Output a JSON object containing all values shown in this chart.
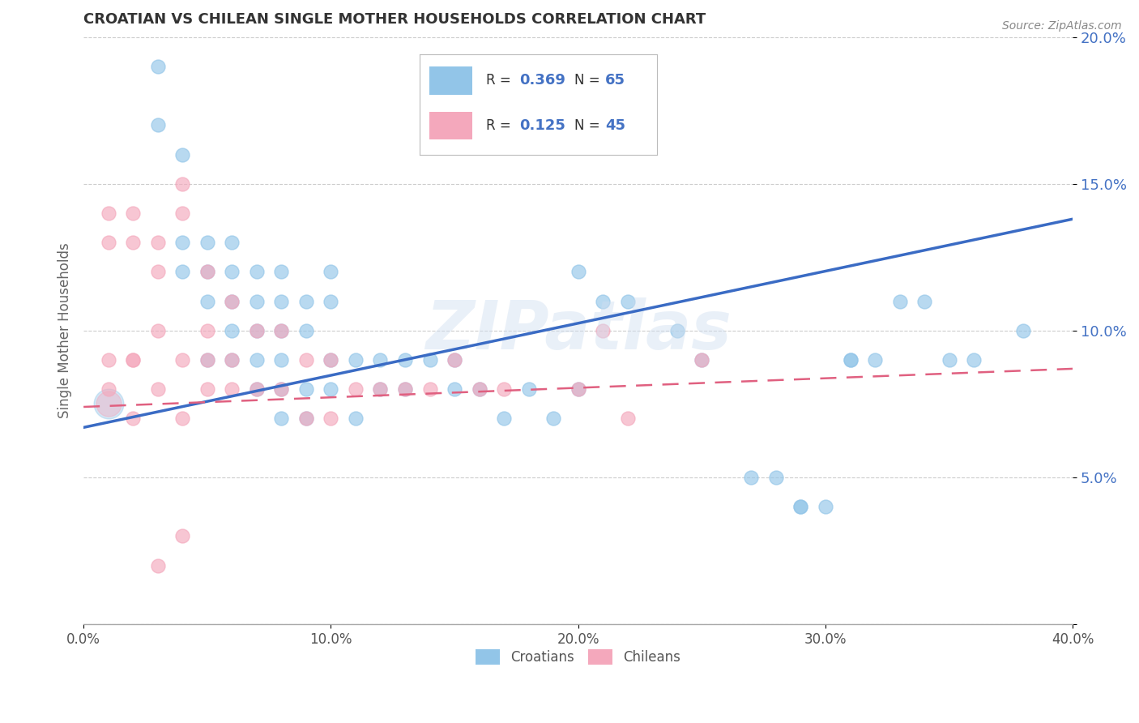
{
  "title": "CROATIAN VS CHILEAN SINGLE MOTHER HOUSEHOLDS CORRELATION CHART",
  "source": "Source: ZipAtlas.com",
  "ylabel": "Single Mother Households",
  "xlim": [
    0.0,
    0.4
  ],
  "ylim": [
    0.0,
    0.2
  ],
  "xticks": [
    0.0,
    0.1,
    0.2,
    0.3,
    0.4
  ],
  "xtick_labels": [
    "0.0%",
    "10.0%",
    "20.0%",
    "30.0%",
    "40.0%"
  ],
  "yticks": [
    0.0,
    0.05,
    0.1,
    0.15,
    0.2
  ],
  "ytick_labels": [
    "",
    "5.0%",
    "10.0%",
    "15.0%",
    "20.0%"
  ],
  "croatian_color": "#92C5E8",
  "chilean_color": "#F4A8BC",
  "trendline_croatian_color": "#3A6BC4",
  "trendline_chilean_color": "#E06080",
  "watermark": "ZIPatlas",
  "legend_R_croatian": "0.369",
  "legend_N_croatian": "65",
  "legend_R_chilean": "0.125",
  "legend_N_chilean": "45",
  "background_color": "#FFFFFF",
  "grid_color": "#CCCCCC",
  "croatian_x": [
    0.03,
    0.03,
    0.04,
    0.04,
    0.04,
    0.05,
    0.05,
    0.05,
    0.05,
    0.06,
    0.06,
    0.06,
    0.06,
    0.06,
    0.07,
    0.07,
    0.07,
    0.07,
    0.07,
    0.08,
    0.08,
    0.08,
    0.08,
    0.08,
    0.08,
    0.09,
    0.09,
    0.09,
    0.09,
    0.1,
    0.1,
    0.1,
    0.1,
    0.11,
    0.11,
    0.12,
    0.12,
    0.13,
    0.13,
    0.14,
    0.15,
    0.15,
    0.16,
    0.17,
    0.18,
    0.19,
    0.2,
    0.2,
    0.21,
    0.22,
    0.24,
    0.25,
    0.27,
    0.28,
    0.29,
    0.3,
    0.31,
    0.32,
    0.33,
    0.34,
    0.35,
    0.36,
    0.38,
    0.31,
    0.29
  ],
  "croatian_y": [
    0.19,
    0.17,
    0.16,
    0.13,
    0.12,
    0.13,
    0.12,
    0.11,
    0.09,
    0.13,
    0.12,
    0.11,
    0.1,
    0.09,
    0.12,
    0.11,
    0.1,
    0.09,
    0.08,
    0.12,
    0.11,
    0.1,
    0.09,
    0.08,
    0.07,
    0.11,
    0.1,
    0.08,
    0.07,
    0.12,
    0.11,
    0.09,
    0.08,
    0.09,
    0.07,
    0.09,
    0.08,
    0.09,
    0.08,
    0.09,
    0.09,
    0.08,
    0.08,
    0.07,
    0.08,
    0.07,
    0.12,
    0.08,
    0.11,
    0.11,
    0.1,
    0.09,
    0.05,
    0.05,
    0.04,
    0.04,
    0.09,
    0.09,
    0.11,
    0.11,
    0.09,
    0.09,
    0.1,
    0.09,
    0.04
  ],
  "chilean_x": [
    0.01,
    0.01,
    0.01,
    0.02,
    0.02,
    0.02,
    0.02,
    0.03,
    0.03,
    0.03,
    0.03,
    0.04,
    0.04,
    0.04,
    0.04,
    0.05,
    0.05,
    0.05,
    0.06,
    0.06,
    0.07,
    0.07,
    0.08,
    0.08,
    0.09,
    0.09,
    0.1,
    0.1,
    0.11,
    0.12,
    0.13,
    0.14,
    0.15,
    0.16,
    0.17,
    0.2,
    0.21,
    0.22,
    0.25,
    0.01,
    0.02,
    0.03,
    0.04,
    0.05,
    0.06
  ],
  "chilean_y": [
    0.14,
    0.13,
    0.08,
    0.14,
    0.13,
    0.09,
    0.07,
    0.13,
    0.12,
    0.1,
    0.08,
    0.15,
    0.14,
    0.09,
    0.07,
    0.12,
    0.1,
    0.08,
    0.11,
    0.09,
    0.1,
    0.08,
    0.1,
    0.08,
    0.09,
    0.07,
    0.09,
    0.07,
    0.08,
    0.08,
    0.08,
    0.08,
    0.09,
    0.08,
    0.08,
    0.08,
    0.1,
    0.07,
    0.09,
    0.09,
    0.09,
    0.02,
    0.03,
    0.09,
    0.08
  ],
  "trendline_blue_x0": 0.0,
  "trendline_blue_y0": 0.067,
  "trendline_blue_x1": 0.4,
  "trendline_blue_y1": 0.138,
  "trendline_pink_x0": 0.0,
  "trendline_pink_y0": 0.074,
  "trendline_pink_x1": 0.4,
  "trendline_pink_y1": 0.087
}
